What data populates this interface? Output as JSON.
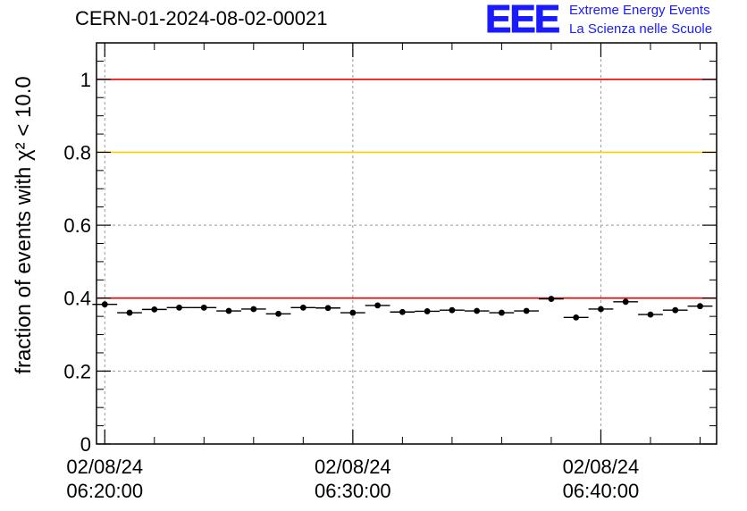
{
  "header": {
    "title": "CERN-01-2024-08-02-00021",
    "logo_mark": "EEE",
    "logo_line1": "Extreme Energy Events",
    "logo_line2": "La Scienza nelle Scuole"
  },
  "colors": {
    "upper_ref": "#ee0000",
    "mid_ref": "#ffcc00",
    "lower_ref": "#ee0000",
    "logo": "#1a1aff"
  },
  "chart_data": {
    "type": "scatter",
    "title": "CERN-01-2024-08-02-00021",
    "xlabel": "",
    "ylabel": "fraction of events with χ² < 10.0",
    "ylim": [
      0,
      1.1
    ],
    "xlim": [
      "06:19:40",
      "06:44:40"
    ],
    "x_ticks": [
      {
        "date": "02/08/24",
        "time": "06:20:00"
      },
      {
        "date": "02/08/24",
        "time": "06:30:00"
      },
      {
        "date": "02/08/24",
        "time": "06:40:00"
      }
    ],
    "y_ticks": [
      "0",
      "0.2",
      "0.4",
      "0.6",
      "0.8",
      "1"
    ],
    "grid": true,
    "reference_lines": [
      {
        "y": 1.0,
        "color": "#ee0000"
      },
      {
        "y": 0.8,
        "color": "#ffcc00"
      },
      {
        "y": 0.4,
        "color": "#ee0000"
      }
    ],
    "bin_width_minutes": 1,
    "x": [
      "06:20:00",
      "06:21:00",
      "06:22:00",
      "06:23:00",
      "06:24:00",
      "06:25:00",
      "06:26:00",
      "06:27:00",
      "06:28:00",
      "06:29:00",
      "06:30:00",
      "06:31:00",
      "06:32:00",
      "06:33:00",
      "06:34:00",
      "06:35:00",
      "06:36:00",
      "06:37:00",
      "06:38:00",
      "06:39:00",
      "06:40:00",
      "06:41:00",
      "06:42:00",
      "06:43:00",
      "06:44:00"
    ],
    "values": [
      0.383,
      0.36,
      0.369,
      0.374,
      0.374,
      0.365,
      0.37,
      0.357,
      0.374,
      0.373,
      0.36,
      0.38,
      0.362,
      0.364,
      0.367,
      0.365,
      0.36,
      0.365,
      0.398,
      0.347,
      0.37,
      0.39,
      0.355,
      0.367,
      0.378
    ]
  }
}
